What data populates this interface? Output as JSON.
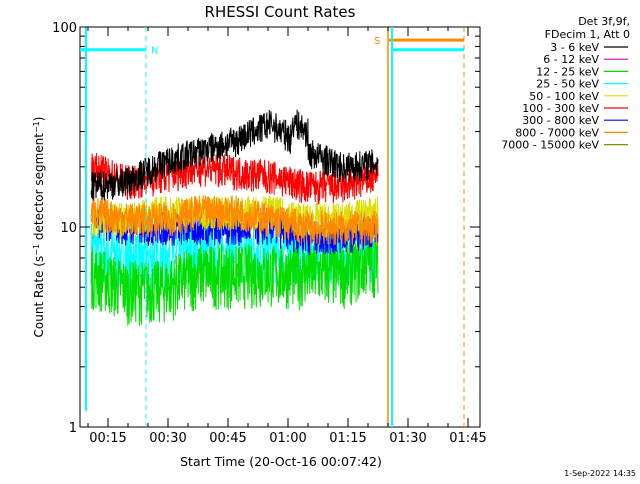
{
  "chart_data": {
    "type": "line",
    "title": "RHESSI Count Rates",
    "xlabel": "Start Time (20-Oct-16 00:07:42)",
    "ylabel_main": "Count Rate (s",
    "ylabel_sup": "−1",
    "ylabel_tail": " detector segment",
    "ylabel_sup2": "−1",
    "ylabel_end": ")",
    "yscale": "log",
    "ylim": [
      1,
      100
    ],
    "xlim_minutes": [
      8,
      48
    ],
    "x_ticks": [
      {
        "label": "00:15",
        "minutes": 15
      },
      {
        "label": "00:30",
        "minutes": 30
      },
      {
        "label": "00:45",
        "minutes": 45
      },
      {
        "label": "01:00",
        "minutes": 60
      },
      {
        "label": "01:15",
        "minutes": 75
      },
      {
        "label": "01:30",
        "minutes": 90
      },
      {
        "label": "01:45",
        "minutes": 105
      }
    ],
    "y_ticks": [
      {
        "label": "1",
        "value": 1
      },
      {
        "label": "10",
        "value": 10
      },
      {
        "label": "100",
        "value": 100
      }
    ],
    "legend_header": [
      "Det 3f,9f,",
      "FDecim 1, Att 0"
    ],
    "series": [
      {
        "name": "3 - 6 keV",
        "color": "#000000",
        "level": [
          16,
          17,
          21,
          24,
          27,
          33,
          24,
          20,
          21
        ]
      },
      {
        "name": "6 - 12 keV",
        "color": "#cc00cc",
        "level": [
          10,
          10,
          11,
          11,
          11,
          10,
          10,
          10,
          10
        ]
      },
      {
        "name": "12 - 25 keV",
        "color": "#00dd00",
        "level": [
          6,
          5,
          5,
          6,
          6,
          6,
          6,
          6,
          7
        ]
      },
      {
        "name": "25 - 50 keV",
        "color": "#00ffff",
        "level": [
          8,
          7,
          7,
          8,
          8,
          8,
          8,
          8,
          8
        ]
      },
      {
        "name": "50 - 100 keV",
        "color": "#dddd00",
        "level": [
          11,
          11,
          12,
          12,
          12,
          12,
          11,
          11,
          12
        ]
      },
      {
        "name": "100 - 300 keV",
        "color": "#ff0000",
        "level": [
          20,
          17,
          18,
          20,
          19,
          18,
          16,
          16,
          18
        ]
      },
      {
        "name": "300 - 800 keV",
        "color": "#0000ff",
        "level": [
          11,
          10,
          10,
          10,
          10,
          10,
          9,
          9,
          10
        ]
      },
      {
        "name": "800 - 7000 keV",
        "color": "#ff8800",
        "level": [
          12,
          11,
          11,
          12,
          12,
          11,
          10,
          10,
          10
        ]
      },
      {
        "name": "7000 - 15000 keV",
        "color": "#888800",
        "level": null
      }
    ],
    "annotations": {
      "night_marker": "N",
      "saa_marker": "S",
      "colors": {
        "night": "#00ffff",
        "saa": "#ff8800"
      }
    },
    "timestamp": "1-Sep-2022 14:35"
  }
}
